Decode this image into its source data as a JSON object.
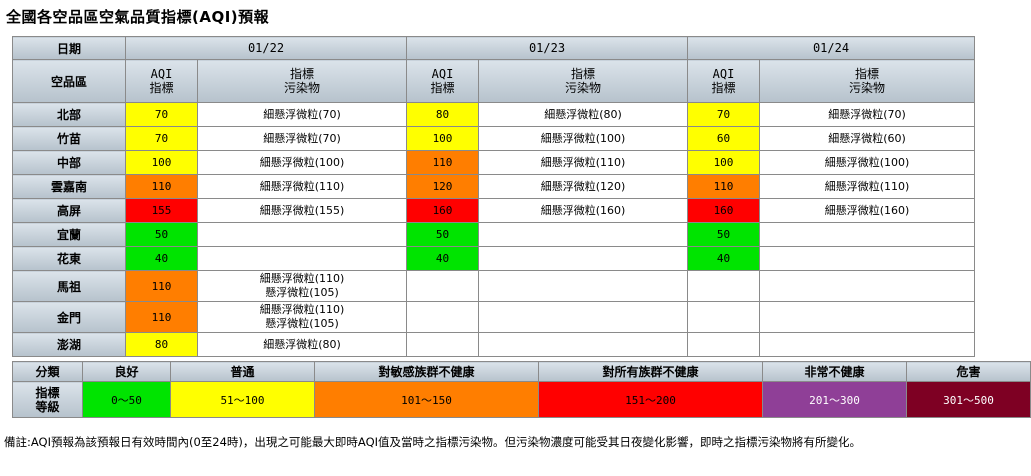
{
  "title": "全國各空品區空氣品質指標(AQI)預報",
  "header": {
    "date_label": "日期",
    "area_label": "空品區",
    "aqi_label_1": "AQI",
    "aqi_label_2": "指標",
    "pol_label_1": "指標",
    "pol_label_2": "污染物",
    "dates": [
      "01/22",
      "01/23",
      "01/24"
    ]
  },
  "rows": [
    {
      "region": "北部",
      "days": [
        {
          "aqi": "70",
          "level": "mod",
          "pol": [
            "細懸浮微粒(70)"
          ]
        },
        {
          "aqi": "80",
          "level": "mod",
          "pol": [
            "細懸浮微粒(80)"
          ]
        },
        {
          "aqi": "70",
          "level": "mod",
          "pol": [
            "細懸浮微粒(70)"
          ]
        }
      ]
    },
    {
      "region": "竹苗",
      "days": [
        {
          "aqi": "70",
          "level": "mod",
          "pol": [
            "細懸浮微粒(70)"
          ]
        },
        {
          "aqi": "100",
          "level": "mod",
          "pol": [
            "細懸浮微粒(100)"
          ]
        },
        {
          "aqi": "60",
          "level": "mod",
          "pol": [
            "細懸浮微粒(60)"
          ]
        }
      ]
    },
    {
      "region": "中部",
      "days": [
        {
          "aqi": "100",
          "level": "mod",
          "pol": [
            "細懸浮微粒(100)"
          ]
        },
        {
          "aqi": "110",
          "level": "usg",
          "pol": [
            "細懸浮微粒(110)"
          ]
        },
        {
          "aqi": "100",
          "level": "mod",
          "pol": [
            "細懸浮微粒(100)"
          ]
        }
      ]
    },
    {
      "region": "雲嘉南",
      "days": [
        {
          "aqi": "110",
          "level": "usg",
          "pol": [
            "細懸浮微粒(110)"
          ]
        },
        {
          "aqi": "120",
          "level": "usg",
          "pol": [
            "細懸浮微粒(120)"
          ]
        },
        {
          "aqi": "110",
          "level": "usg",
          "pol": [
            "細懸浮微粒(110)"
          ]
        }
      ]
    },
    {
      "region": "高屏",
      "days": [
        {
          "aqi": "155",
          "level": "unh",
          "pol": [
            "細懸浮微粒(155)"
          ]
        },
        {
          "aqi": "160",
          "level": "unh",
          "pol": [
            "細懸浮微粒(160)"
          ]
        },
        {
          "aqi": "160",
          "level": "unh",
          "pol": [
            "細懸浮微粒(160)"
          ]
        }
      ]
    },
    {
      "region": "宜蘭",
      "days": [
        {
          "aqi": "50",
          "level": "good",
          "pol": []
        },
        {
          "aqi": "50",
          "level": "good",
          "pol": []
        },
        {
          "aqi": "50",
          "level": "good",
          "pol": []
        }
      ]
    },
    {
      "region": "花東",
      "days": [
        {
          "aqi": "40",
          "level": "good",
          "pol": []
        },
        {
          "aqi": "40",
          "level": "good",
          "pol": []
        },
        {
          "aqi": "40",
          "level": "good",
          "pol": []
        }
      ]
    },
    {
      "region": "馬祖",
      "tall": true,
      "days": [
        {
          "aqi": "110",
          "level": "usg",
          "pol": [
            "細懸浮微粒(110)",
            "懸浮微粒(105)"
          ]
        },
        {
          "aqi": "",
          "level": "",
          "pol": []
        },
        {
          "aqi": "",
          "level": "",
          "pol": []
        }
      ]
    },
    {
      "region": "金門",
      "tall": true,
      "days": [
        {
          "aqi": "110",
          "level": "usg",
          "pol": [
            "細懸浮微粒(110)",
            "懸浮微粒(105)"
          ]
        },
        {
          "aqi": "",
          "level": "",
          "pol": []
        },
        {
          "aqi": "",
          "level": "",
          "pol": []
        }
      ]
    },
    {
      "region": "澎湖",
      "days": [
        {
          "aqi": "80",
          "level": "mod",
          "pol": [
            "細懸浮微粒(80)"
          ]
        },
        {
          "aqi": "",
          "level": "",
          "pol": []
        },
        {
          "aqi": "",
          "level": "",
          "pol": []
        }
      ]
    }
  ],
  "legend": {
    "class_label": "分類",
    "grade_label_1": "指標",
    "grade_label_2": "等級",
    "categories": [
      {
        "name": "良好",
        "range": "0～50",
        "level": "good"
      },
      {
        "name": "普通",
        "range": "51～100",
        "level": "mod"
      },
      {
        "name": "對敏感族群不健康",
        "range": "101～150",
        "level": "usg"
      },
      {
        "name": "對所有族群不健康",
        "range": "151～200",
        "level": "unh"
      },
      {
        "name": "非常不健康",
        "range": "201～300",
        "level": "vun"
      },
      {
        "name": "危害",
        "range": "301～500",
        "level": "haz"
      }
    ]
  },
  "note": "備註:AQI預報為該預報日有效時間內(0至24時)，出現之可能最大即時AQI值及當時之指標污染物。但污染物濃度可能受其日夜變化影響，即時之指標污染物將有所變化。"
}
